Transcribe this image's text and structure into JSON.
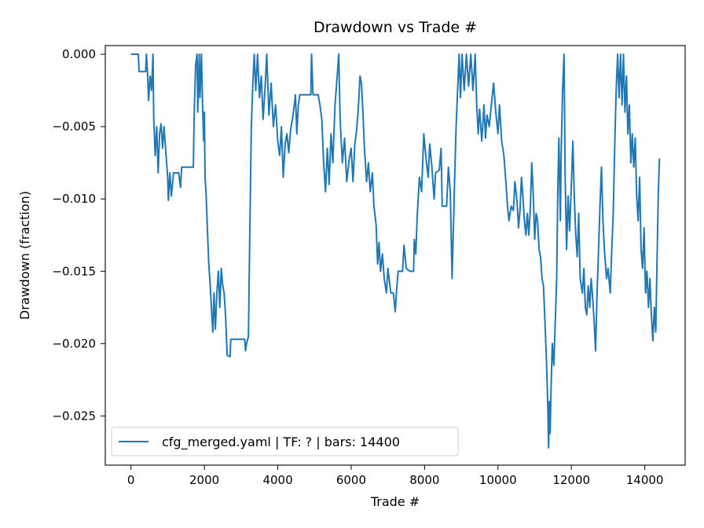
{
  "chart_data": {
    "type": "line",
    "title": "Drawdown vs Trade #",
    "xlabel": "Trade #",
    "ylabel": "Drawdown (fraction)",
    "xlim": [
      -700,
      15100
    ],
    "ylim": [
      -0.0284,
      0.0006
    ],
    "xticks": [
      0,
      2000,
      4000,
      6000,
      8000,
      10000,
      12000,
      14000
    ],
    "xtick_labels": [
      "0",
      "2000",
      "4000",
      "6000",
      "8000",
      "10000",
      "12000",
      "14000"
    ],
    "yticks": [
      0.0,
      -0.005,
      -0.01,
      -0.015,
      -0.02,
      -0.025
    ],
    "ytick_labels": [
      "0.000",
      "−0.005",
      "−0.010",
      "−0.015",
      "−0.020",
      "−0.025"
    ],
    "legend_position": "lower-left",
    "grid": false,
    "series": [
      {
        "name": "cfg_merged.yaml | TF: ? | bars: 14400",
        "color": "#1f77b4",
        "points": [
          [
            0,
            0.0
          ],
          [
            200,
            0.0
          ],
          [
            220,
            -0.0012
          ],
          [
            400,
            -0.0012
          ],
          [
            420,
            0.0
          ],
          [
            450,
            -0.0012
          ],
          [
            480,
            -0.0032
          ],
          [
            520,
            -0.0015
          ],
          [
            560,
            -0.0025
          ],
          [
            600,
            0.0
          ],
          [
            620,
            -0.0045
          ],
          [
            660,
            -0.007
          ],
          [
            700,
            -0.005
          ],
          [
            740,
            -0.0082
          ],
          [
            780,
            -0.0055
          ],
          [
            820,
            -0.0048
          ],
          [
            860,
            -0.0065
          ],
          [
            900,
            -0.005
          ],
          [
            950,
            -0.0068
          ],
          [
            1000,
            -0.0085
          ],
          [
            1020,
            -0.0101
          ],
          [
            1060,
            -0.0082
          ],
          [
            1100,
            -0.0098
          ],
          [
            1160,
            -0.0082
          ],
          [
            1300,
            -0.0082
          ],
          [
            1350,
            -0.0092
          ],
          [
            1380,
            -0.0078
          ],
          [
            1600,
            -0.0078
          ],
          [
            1700,
            -0.0078
          ],
          [
            1720,
            -0.0045
          ],
          [
            1760,
            -0.0008
          ],
          [
            1800,
            0.0
          ],
          [
            1820,
            -0.004
          ],
          [
            1860,
            0.0
          ],
          [
            1880,
            -0.003
          ],
          [
            1920,
            0.0
          ],
          [
            1950,
            -0.0035
          ],
          [
            1980,
            -0.006
          ],
          [
            2000,
            -0.004
          ],
          [
            2020,
            -0.0085
          ],
          [
            2050,
            -0.0098
          ],
          [
            2080,
            -0.012
          ],
          [
            2120,
            -0.0145
          ],
          [
            2160,
            -0.016
          ],
          [
            2200,
            -0.018
          ],
          [
            2230,
            -0.0192
          ],
          [
            2260,
            -0.0165
          ],
          [
            2300,
            -0.019
          ],
          [
            2340,
            -0.0165
          ],
          [
            2380,
            -0.015
          ],
          [
            2420,
            -0.0175
          ],
          [
            2460,
            -0.0148
          ],
          [
            2500,
            -0.016
          ],
          [
            2540,
            -0.0165
          ],
          [
            2580,
            -0.0182
          ],
          [
            2620,
            -0.0208
          ],
          [
            2700,
            -0.0209
          ],
          [
            2720,
            -0.0197
          ],
          [
            3100,
            -0.0197
          ],
          [
            3120,
            -0.0205
          ],
          [
            3150,
            -0.02
          ],
          [
            3200,
            -0.0195
          ],
          [
            3240,
            -0.012
          ],
          [
            3280,
            -0.005
          ],
          [
            3320,
            -0.002
          ],
          [
            3360,
            0.0
          ],
          [
            3400,
            -0.0025
          ],
          [
            3450,
            0.0
          ],
          [
            3500,
            -0.003
          ],
          [
            3550,
            -0.0015
          ],
          [
            3600,
            -0.0045
          ],
          [
            3650,
            -0.0025
          ],
          [
            3700,
            0.0
          ],
          [
            3760,
            -0.0042
          ],
          [
            3820,
            -0.002
          ],
          [
            3880,
            -0.005
          ],
          [
            3940,
            -0.0035
          ],
          [
            4000,
            -0.006
          ],
          [
            4050,
            -0.007
          ],
          [
            4100,
            -0.005
          ],
          [
            4150,
            -0.0085
          ],
          [
            4200,
            -0.0062
          ],
          [
            4250,
            -0.0055
          ],
          [
            4300,
            -0.0068
          ],
          [
            4350,
            -0.0052
          ],
          [
            4400,
            -0.0045
          ],
          [
            4450,
            -0.0035
          ],
          [
            4480,
            -0.0028
          ],
          [
            4520,
            -0.0055
          ],
          [
            4560,
            -0.0035
          ],
          [
            4600,
            -0.0028
          ],
          [
            4700,
            -0.0028
          ],
          [
            4800,
            -0.0028
          ],
          [
            4900,
            -0.0028
          ],
          [
            4920,
            0.0
          ],
          [
            4960,
            -0.0028
          ],
          [
            5100,
            -0.0028
          ],
          [
            5150,
            -0.0035
          ],
          [
            5200,
            -0.0045
          ],
          [
            5250,
            -0.0075
          ],
          [
            5300,
            -0.0095
          ],
          [
            5350,
            -0.0065
          ],
          [
            5400,
            -0.009
          ],
          [
            5450,
            -0.0055
          ],
          [
            5500,
            -0.0075
          ],
          [
            5560,
            -0.0035
          ],
          [
            5620,
            -0.0015
          ],
          [
            5660,
            0.0
          ],
          [
            5700,
            -0.0045
          ],
          [
            5760,
            -0.0075
          ],
          [
            5820,
            -0.0058
          ],
          [
            5880,
            -0.0088
          ],
          [
            5950,
            -0.0072
          ],
          [
            6000,
            -0.0065
          ],
          [
            6050,
            -0.0088
          ],
          [
            6100,
            -0.0062
          ],
          [
            6150,
            -0.0052
          ],
          [
            6200,
            -0.0035
          ],
          [
            6240,
            -0.0015
          ],
          [
            6280,
            -0.002
          ],
          [
            6320,
            -0.004
          ],
          [
            6360,
            -0.0065
          ],
          [
            6420,
            -0.0088
          ],
          [
            6470,
            -0.0075
          ],
          [
            6520,
            -0.0095
          ],
          [
            6580,
            -0.0082
          ],
          [
            6620,
            -0.0105
          ],
          [
            6680,
            -0.0118
          ],
          [
            6720,
            -0.0145
          ],
          [
            6760,
            -0.013
          ],
          [
            6800,
            -0.015
          ],
          [
            6850,
            -0.0138
          ],
          [
            6900,
            -0.0155
          ],
          [
            6960,
            -0.0165
          ],
          [
            7000,
            -0.0148
          ],
          [
            7080,
            -0.0165
          ],
          [
            7150,
            -0.0165
          ],
          [
            7200,
            -0.0178
          ],
          [
            7240,
            -0.0162
          ],
          [
            7280,
            -0.015
          ],
          [
            7400,
            -0.015
          ],
          [
            7440,
            -0.0132
          ],
          [
            7500,
            -0.0148
          ],
          [
            7600,
            -0.015
          ],
          [
            7700,
            -0.015
          ],
          [
            7720,
            -0.0128
          ],
          [
            7760,
            -0.0138
          ],
          [
            7800,
            -0.0112
          ],
          [
            7860,
            -0.0085
          ],
          [
            7920,
            -0.0095
          ],
          [
            7980,
            -0.0055
          ],
          [
            8040,
            -0.0072
          ],
          [
            8100,
            -0.0085
          ],
          [
            8140,
            -0.0062
          ],
          [
            8200,
            -0.0078
          ],
          [
            8260,
            -0.01
          ],
          [
            8300,
            -0.0082
          ],
          [
            8400,
            -0.008
          ],
          [
            8450,
            -0.0065
          ],
          [
            8480,
            -0.0105
          ],
          [
            8600,
            -0.0105
          ],
          [
            8650,
            -0.0078
          ],
          [
            8700,
            -0.0095
          ],
          [
            8750,
            -0.0155
          ],
          [
            8780,
            -0.0125
          ],
          [
            8820,
            -0.0085
          ],
          [
            8860,
            -0.005
          ],
          [
            8900,
            -0.0025
          ],
          [
            8940,
            0.0
          ],
          [
            8980,
            -0.003
          ],
          [
            9020,
            0.0
          ],
          [
            9080,
            -0.0025
          ],
          [
            9140,
            0.0
          ],
          [
            9200,
            -0.0022
          ],
          [
            9260,
            0.0
          ],
          [
            9320,
            -0.0025
          ],
          [
            9380,
            0.0
          ],
          [
            9420,
            -0.0035
          ],
          [
            9460,
            -0.0055
          ],
          [
            9500,
            -0.0038
          ],
          [
            9560,
            -0.006
          ],
          [
            9620,
            -0.0035
          ],
          [
            9660,
            -0.0058
          ],
          [
            9700,
            -0.0042
          ],
          [
            9760,
            -0.005
          ],
          [
            9820,
            -0.0035
          ],
          [
            9880,
            -0.002
          ],
          [
            9940,
            -0.004
          ],
          [
            10000,
            -0.0055
          ],
          [
            10040,
            -0.0035
          ],
          [
            10100,
            -0.006
          ],
          [
            10160,
            -0.007
          ],
          [
            10220,
            -0.009
          ],
          [
            10260,
            -0.0105
          ],
          [
            10300,
            -0.0115
          ],
          [
            10360,
            -0.0105
          ],
          [
            10420,
            -0.0108
          ],
          [
            10460,
            -0.0088
          ],
          [
            10520,
            -0.0102
          ],
          [
            10560,
            -0.012
          ],
          [
            10600,
            -0.0108
          ],
          [
            10640,
            -0.0085
          ],
          [
            10680,
            -0.0098
          ],
          [
            10720,
            -0.0115
          ],
          [
            10760,
            -0.0125
          ],
          [
            10800,
            -0.011
          ],
          [
            10840,
            -0.0125
          ],
          [
            10880,
            -0.0108
          ],
          [
            10920,
            -0.0075
          ],
          [
            10960,
            -0.0095
          ],
          [
            11000,
            -0.0128
          ],
          [
            11040,
            -0.011
          ],
          [
            11080,
            -0.0115
          ],
          [
            11120,
            -0.0135
          ],
          [
            11160,
            -0.014
          ],
          [
            11200,
            -0.0155
          ],
          [
            11240,
            -0.016
          ],
          [
            11280,
            -0.0185
          ],
          [
            11320,
            -0.021
          ],
          [
            11360,
            -0.0245
          ],
          [
            11380,
            -0.0272
          ],
          [
            11400,
            -0.024
          ],
          [
            11420,
            -0.0262
          ],
          [
            11450,
            -0.0228
          ],
          [
            11480,
            -0.02
          ],
          [
            11520,
            -0.0215
          ],
          [
            11560,
            -0.0185
          ],
          [
            11600,
            -0.0155
          ],
          [
            11630,
            -0.0095
          ],
          [
            11660,
            -0.0058
          ],
          [
            11700,
            -0.0115
          ],
          [
            11720,
            -0.0072
          ],
          [
            11760,
            -0.0025
          ],
          [
            11800,
            0.0
          ],
          [
            11830,
            -0.0085
          ],
          [
            11870,
            -0.0135
          ],
          [
            11910,
            -0.0098
          ],
          [
            11950,
            -0.0122
          ],
          [
            12000,
            -0.009
          ],
          [
            12040,
            -0.006
          ],
          [
            12080,
            -0.0098
          ],
          [
            12120,
            -0.0125
          ],
          [
            12160,
            -0.014
          ],
          [
            12200,
            -0.011
          ],
          [
            12240,
            -0.0155
          ],
          [
            12300,
            -0.0165
          ],
          [
            12340,
            -0.0148
          ],
          [
            12380,
            -0.0175
          ],
          [
            12420,
            -0.018
          ],
          [
            12460,
            -0.016
          ],
          [
            12500,
            -0.0175
          ],
          [
            12540,
            -0.0155
          ],
          [
            12580,
            -0.0168
          ],
          [
            12620,
            -0.0185
          ],
          [
            12660,
            -0.0205
          ],
          [
            12700,
            -0.0165
          ],
          [
            12740,
            -0.0135
          ],
          [
            12780,
            -0.0105
          ],
          [
            12820,
            -0.0078
          ],
          [
            12860,
            -0.0115
          ],
          [
            12900,
            -0.0135
          ],
          [
            12960,
            -0.0155
          ],
          [
            13000,
            -0.0148
          ],
          [
            13060,
            -0.0165
          ],
          [
            13100,
            -0.0135
          ],
          [
            13140,
            -0.011
          ],
          [
            13180,
            -0.0065
          ],
          [
            13220,
            -0.0025
          ],
          [
            13260,
            0.0
          ],
          [
            13300,
            -0.003
          ],
          [
            13340,
            0.0
          ],
          [
            13380,
            -0.0035
          ],
          [
            13420,
            0.0
          ],
          [
            13460,
            -0.004
          ],
          [
            13500,
            -0.0015
          ],
          [
            13540,
            -0.0055
          ],
          [
            13580,
            -0.0035
          ],
          [
            13620,
            -0.0075
          ],
          [
            13660,
            -0.0055
          ],
          [
            13700,
            -0.0078
          ],
          [
            13740,
            -0.0058
          ],
          [
            13780,
            -0.0098
          ],
          [
            13820,
            -0.0115
          ],
          [
            13860,
            -0.0085
          ],
          [
            13900,
            -0.0135
          ],
          [
            13940,
            -0.0148
          ],
          [
            13980,
            -0.012
          ],
          [
            14020,
            -0.0165
          ],
          [
            14060,
            -0.015
          ],
          [
            14100,
            -0.0175
          ],
          [
            14140,
            -0.0155
          ],
          [
            14180,
            -0.018
          ],
          [
            14220,
            -0.0198
          ],
          [
            14260,
            -0.0175
          ],
          [
            14300,
            -0.0192
          ],
          [
            14340,
            -0.0135
          ],
          [
            14370,
            -0.0095
          ],
          [
            14400,
            -0.0072
          ]
        ]
      }
    ]
  }
}
